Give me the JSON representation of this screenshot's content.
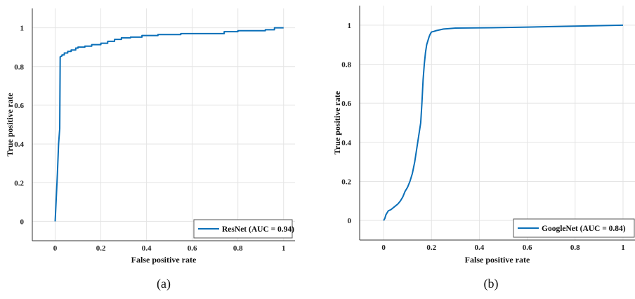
{
  "colors": {
    "line": "#0a6fb8",
    "grid": "#e4e4e4",
    "axis": "#333333"
  },
  "chart_data": [
    {
      "type": "line",
      "caption": "(a)",
      "xlabel": "False positive rate",
      "ylabel": "True positive rate",
      "xlim": [
        -0.1,
        1.05
      ],
      "ylim": [
        -0.1,
        1.1
      ],
      "xticks": [
        0,
        0.2,
        0.4,
        0.6,
        0.8,
        1
      ],
      "xtick_labels": [
        "0",
        "0.2",
        "0.4",
        "0.6",
        "0.8",
        "1"
      ],
      "yticks": [
        0,
        0.2,
        0.4,
        0.6,
        0.8,
        1
      ],
      "ytick_labels": [
        "0",
        "0.2",
        "0.4",
        "0.6",
        "0.8",
        "1"
      ],
      "grid": true,
      "legend_position": "bottom-right",
      "series": [
        {
          "name": "ResNet (AUC =  0.94)",
          "x": [
            0,
            0.01,
            0.015,
            0.02,
            0.022,
            0.022,
            0.03,
            0.03,
            0.04,
            0.04,
            0.055,
            0.055,
            0.07,
            0.07,
            0.09,
            0.09,
            0.1,
            0.1,
            0.13,
            0.13,
            0.16,
            0.16,
            0.2,
            0.2,
            0.23,
            0.23,
            0.26,
            0.26,
            0.29,
            0.29,
            0.33,
            0.33,
            0.38,
            0.38,
            0.45,
            0.45,
            0.55,
            0.55,
            0.74,
            0.74,
            0.8,
            0.8,
            0.92,
            0.92,
            0.96,
            0.96,
            1.0
          ],
          "y": [
            0,
            0.25,
            0.4,
            0.48,
            0.85,
            0.85,
            0.855,
            0.86,
            0.86,
            0.87,
            0.87,
            0.878,
            0.878,
            0.885,
            0.885,
            0.895,
            0.895,
            0.9,
            0.9,
            0.905,
            0.905,
            0.913,
            0.913,
            0.92,
            0.92,
            0.93,
            0.93,
            0.94,
            0.94,
            0.948,
            0.948,
            0.952,
            0.952,
            0.96,
            0.96,
            0.965,
            0.965,
            0.97,
            0.97,
            0.98,
            0.98,
            0.985,
            0.985,
            0.99,
            0.99,
            1.0,
            1.0
          ]
        }
      ]
    },
    {
      "type": "line",
      "caption": "(b)",
      "xlabel": "False positive rate",
      "ylabel": "True positive rate",
      "xlim": [
        -0.1,
        1.05
      ],
      "ylim": [
        -0.1,
        1.1
      ],
      "xticks": [
        0,
        0.2,
        0.4,
        0.6,
        0.8,
        1
      ],
      "xtick_labels": [
        "0",
        "0.2",
        "0.4",
        "0.6",
        "0.8",
        "1"
      ],
      "yticks": [
        0,
        0.2,
        0.4,
        0.6,
        0.8,
        1
      ],
      "ytick_labels": [
        "0",
        "0.2",
        "0.4",
        "0.6",
        "0.8",
        "1"
      ],
      "grid": true,
      "legend_position": "bottom-right",
      "series": [
        {
          "name": "GoogleNet (AUC = 0.84)",
          "x": [
            0,
            0.005,
            0.01,
            0.015,
            0.02,
            0.03,
            0.04,
            0.05,
            0.06,
            0.07,
            0.08,
            0.09,
            0.1,
            0.11,
            0.12,
            0.125,
            0.13,
            0.135,
            0.14,
            0.145,
            0.15,
            0.155,
            0.16,
            0.165,
            0.17,
            0.175,
            0.18,
            0.185,
            0.19,
            0.195,
            0.2,
            0.21,
            0.22,
            0.25,
            0.3,
            0.45,
            0.6,
            0.8,
            1.0
          ],
          "y": [
            0,
            0.01,
            0.03,
            0.04,
            0.05,
            0.055,
            0.065,
            0.075,
            0.085,
            0.1,
            0.12,
            0.15,
            0.17,
            0.2,
            0.24,
            0.27,
            0.3,
            0.34,
            0.38,
            0.42,
            0.46,
            0.5,
            0.6,
            0.72,
            0.8,
            0.86,
            0.9,
            0.92,
            0.94,
            0.955,
            0.965,
            0.968,
            0.972,
            0.98,
            0.985,
            0.987,
            0.99,
            0.995,
            1.0
          ]
        }
      ]
    }
  ]
}
